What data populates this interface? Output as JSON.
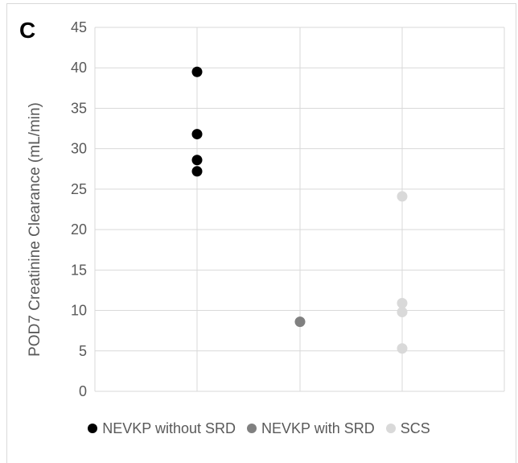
{
  "panel_label": "C",
  "colors": {
    "series": [
      "#000000",
      "#808080",
      "#d9d9d9"
    ],
    "grid": "#d9d9d9",
    "text": "#595959"
  },
  "chart_data": {
    "type": "scatter",
    "title": "",
    "xlabel": "",
    "ylabel": "POD7 Creatinine Clearance (mL/min)",
    "ylim": [
      0,
      45
    ],
    "yticks": [
      "0",
      "5",
      "10",
      "15",
      "20",
      "25",
      "30",
      "35",
      "40",
      "45"
    ],
    "grid": true,
    "legend_placement": "bottom",
    "series": [
      {
        "name": "NEVKP without SRD",
        "x": 1,
        "values": [
          39.5,
          31.8,
          28.6,
          27.2
        ]
      },
      {
        "name": "NEVKP with SRD",
        "x": 2,
        "values": [
          8.6
        ]
      },
      {
        "name": "SCS",
        "x": 3,
        "values": [
          24.1,
          10.9,
          9.8,
          5.3
        ]
      }
    ]
  }
}
